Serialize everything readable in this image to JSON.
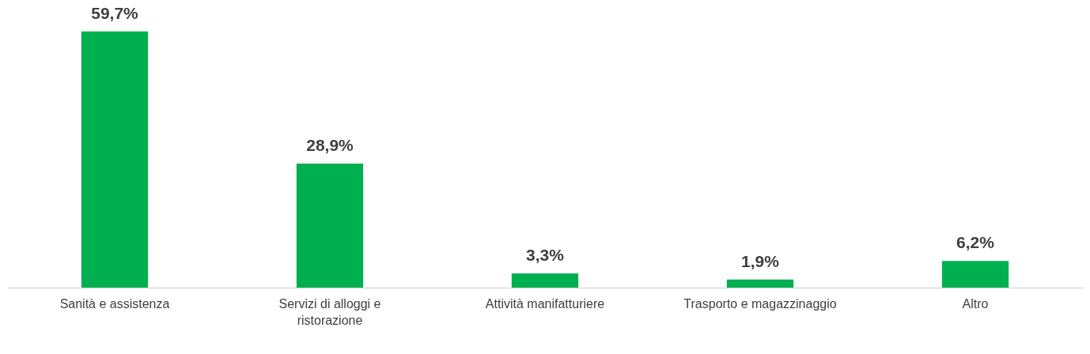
{
  "chart_data": {
    "type": "bar",
    "categories": [
      "Sanità e assistenza",
      "Servizi di alloggi e ristorazione",
      "Attività manifatturiere",
      "Trasporto e magazzinaggio",
      "Altro"
    ],
    "values": [
      59.7,
      28.9,
      3.3,
      1.9,
      6.2
    ],
    "value_labels": [
      "59,7%",
      "28,9%",
      "3,3%",
      "1,9%",
      "6,2%"
    ],
    "color": "#00b050",
    "ylim": [
      0,
      60
    ],
    "tick_labels": "x"
  }
}
